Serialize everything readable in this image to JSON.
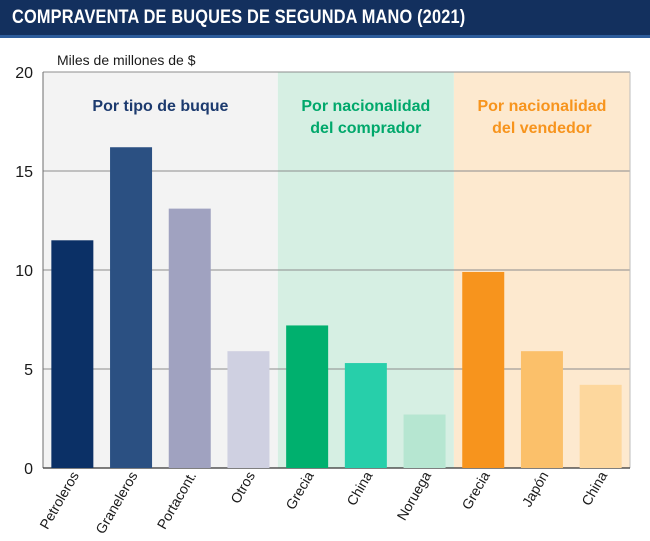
{
  "header": {
    "title": "COMPRAVENTA DE BUQUES DE SEGUNDA MANO (2021)"
  },
  "colors": {
    "header_bg": "#13305e",
    "grid": "#8c8c8c",
    "group_bg": [
      "#f3f3f3",
      "#d6efe3",
      "#fde9cf"
    ],
    "group_title": [
      "#1c3a6e",
      "#00a86b",
      "#f7941d"
    ]
  },
  "chart_data": {
    "type": "bar",
    "title": "COMPRAVENTA DE BUQUES DE SEGUNDA MANO (2021)",
    "ylabel": "Miles de millones de $",
    "xlabel": "",
    "ylim": [
      0,
      20
    ],
    "yticks": [
      0,
      5,
      10,
      15,
      20
    ],
    "grid": true,
    "groups": [
      {
        "title": [
          "Por tipo de buque"
        ],
        "categories": [
          "Petroleros",
          "Graneleros",
          "Portacont.",
          "Otros"
        ],
        "values": [
          11.5,
          16.2,
          13.1,
          5.9
        ],
        "colors": [
          "#0b3066",
          "#2b5082",
          "#a0a2c0",
          "#cfd0e1"
        ]
      },
      {
        "title": [
          "Por nacionalidad",
          "del comprador"
        ],
        "categories": [
          "Grecia",
          "China",
          "Noruega"
        ],
        "values": [
          7.2,
          5.3,
          2.7
        ],
        "colors": [
          "#00b06e",
          "#27cfaa",
          "#b6e6d1"
        ]
      },
      {
        "title": [
          "Por nacionalidad",
          "del vendedor"
        ],
        "categories": [
          "Grecia",
          "Japón",
          "China"
        ],
        "values": [
          9.9,
          5.9,
          4.2
        ],
        "colors": [
          "#f7941d",
          "#fbc06a",
          "#fdd79d"
        ]
      }
    ]
  }
}
